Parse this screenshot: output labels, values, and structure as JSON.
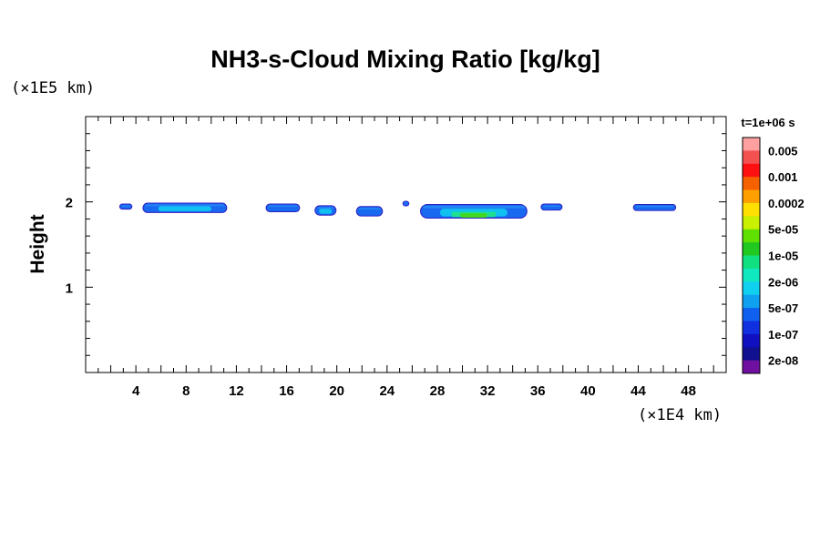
{
  "chart_data": {
    "type": "heatmap",
    "title": "NH3-s-Cloud Mixing Ratio [kg/kg]",
    "xlabel": "",
    "ylabel": "Height",
    "x_unit": "(×1E4 km)",
    "y_unit": "(×1E5 km)",
    "xlim": [
      0,
      51
    ],
    "ylim": [
      0,
      3
    ],
    "x_ticks": [
      4,
      8,
      12,
      16,
      20,
      24,
      28,
      32,
      36,
      40,
      44,
      48
    ],
    "y_ticks": [
      1,
      2
    ],
    "grid": false,
    "legend_placement": "right",
    "colorbar": {
      "title": "t=1e+06 s",
      "labels": [
        "0.005",
        "0.001",
        "0.0002",
        "5e-05",
        "1e-05",
        "2e-06",
        "5e-07",
        "1e-07",
        "2e-08"
      ],
      "colors": [
        "#ffa0a0",
        "#f55050",
        "#ff1010",
        "#f56000",
        "#ffa000",
        "#ffe000",
        "#c8f000",
        "#60e000",
        "#20c820",
        "#10e080",
        "#10e8c0",
        "#10d0f0",
        "#10a0f0",
        "#1060f0",
        "#1030e0",
        "#1010c0",
        "#101090",
        "#7010a0"
      ]
    },
    "cloud_patches": [
      {
        "x_center": 3.2,
        "width": 0.9,
        "height": 1.945,
        "thickness": 0.05,
        "level": "1e-07"
      },
      {
        "x_center": 7.9,
        "width": 6.6,
        "height": 1.93,
        "thickness": 0.1,
        "level": "5e-07"
      },
      {
        "x_center": 15.7,
        "width": 2.6,
        "height": 1.93,
        "thickness": 0.08,
        "level": "1e-07"
      },
      {
        "x_center": 19.1,
        "width": 1.6,
        "height": 1.9,
        "thickness": 0.1,
        "level": "5e-07"
      },
      {
        "x_center": 22.6,
        "width": 2.0,
        "height": 1.89,
        "thickness": 0.1,
        "level": "1e-07"
      },
      {
        "x_center": 25.5,
        "width": 0.4,
        "height": 1.98,
        "thickness": 0.04,
        "level": "1e-07"
      },
      {
        "x_center": 30.9,
        "width": 8.4,
        "height": 1.89,
        "thickness": 0.15,
        "level": "1e-05"
      },
      {
        "x_center": 37.1,
        "width": 1.6,
        "height": 1.94,
        "thickness": 0.06,
        "level": "1e-07"
      },
      {
        "x_center": 45.3,
        "width": 3.3,
        "height": 1.935,
        "thickness": 0.06,
        "level": "1e-07"
      }
    ]
  }
}
